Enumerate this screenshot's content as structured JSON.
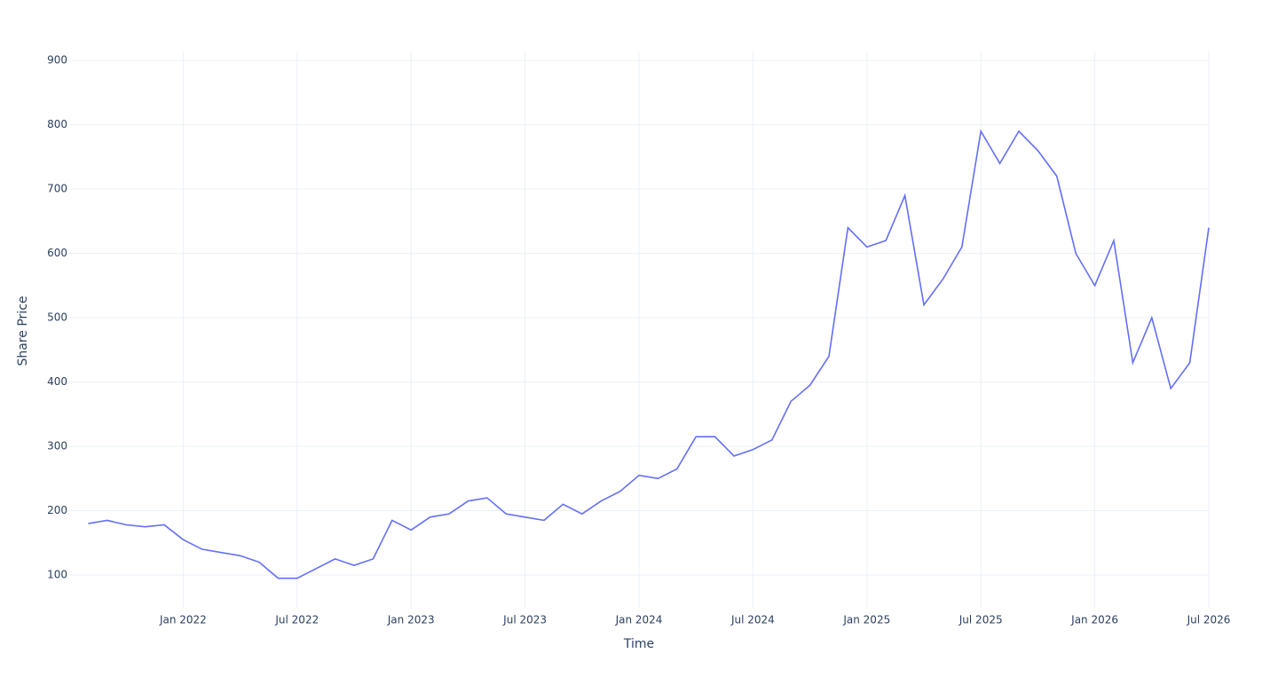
{
  "chart_data": {
    "type": "line",
    "x_title": "Time",
    "y_title": "Share Price",
    "x": [
      "2021-08",
      "2021-09",
      "2021-10",
      "2021-11",
      "2021-12",
      "2022-01",
      "2022-02",
      "2022-03",
      "2022-04",
      "2022-05",
      "2022-06",
      "2022-07",
      "2022-08",
      "2022-09",
      "2022-10",
      "2022-11",
      "2022-12",
      "2023-01",
      "2023-02",
      "2023-03",
      "2023-04",
      "2023-05",
      "2023-06",
      "2023-07",
      "2023-08",
      "2023-09",
      "2023-10",
      "2023-11",
      "2023-12",
      "2024-01",
      "2024-02",
      "2024-03",
      "2024-04",
      "2024-05",
      "2024-06",
      "2024-07",
      "2024-08",
      "2024-09",
      "2024-10",
      "2024-11",
      "2024-12",
      "2025-01",
      "2025-02",
      "2025-03",
      "2025-04",
      "2025-05",
      "2025-06",
      "2025-07",
      "2025-08",
      "2025-09",
      "2025-10",
      "2025-11",
      "2025-12",
      "2026-01",
      "2026-02",
      "2026-03",
      "2026-04",
      "2026-05",
      "2026-06",
      "2026-07"
    ],
    "series": [
      {
        "name": "Share Price",
        "color": "#636efa",
        "values": [
          180,
          185,
          178,
          175,
          178,
          155,
          140,
          135,
          130,
          120,
          95,
          95,
          110,
          125,
          115,
          125,
          185,
          170,
          190,
          195,
          215,
          220,
          195,
          190,
          185,
          210,
          195,
          215,
          230,
          255,
          250,
          265,
          315,
          315,
          285,
          295,
          310,
          370,
          395,
          440,
          640,
          610,
          620,
          690,
          520,
          560,
          610,
          790,
          740,
          790,
          760,
          720,
          600,
          550,
          620,
          430,
          500,
          390,
          430,
          640
        ]
      }
    ],
    "xlim": [
      "2021-07",
      "2026-07"
    ],
    "ylim": [
      49,
      914
    ],
    "xticks": [
      {
        "value": "2022-01",
        "label": "Jan 2022"
      },
      {
        "value": "2022-07",
        "label": "Jul 2022"
      },
      {
        "value": "2023-01",
        "label": "Jan 2023"
      },
      {
        "value": "2023-07",
        "label": "Jul 2023"
      },
      {
        "value": "2024-01",
        "label": "Jan 2024"
      },
      {
        "value": "2024-07",
        "label": "Jul 2024"
      },
      {
        "value": "2025-01",
        "label": "Jan 2025"
      },
      {
        "value": "2025-07",
        "label": "Jul 2025"
      },
      {
        "value": "2026-01",
        "label": "Jan 2026"
      },
      {
        "value": "2026-07",
        "label": "Jul 2026"
      }
    ],
    "yticks": [
      100,
      200,
      300,
      400,
      500,
      600,
      700,
      800,
      900
    ],
    "grid": true
  }
}
